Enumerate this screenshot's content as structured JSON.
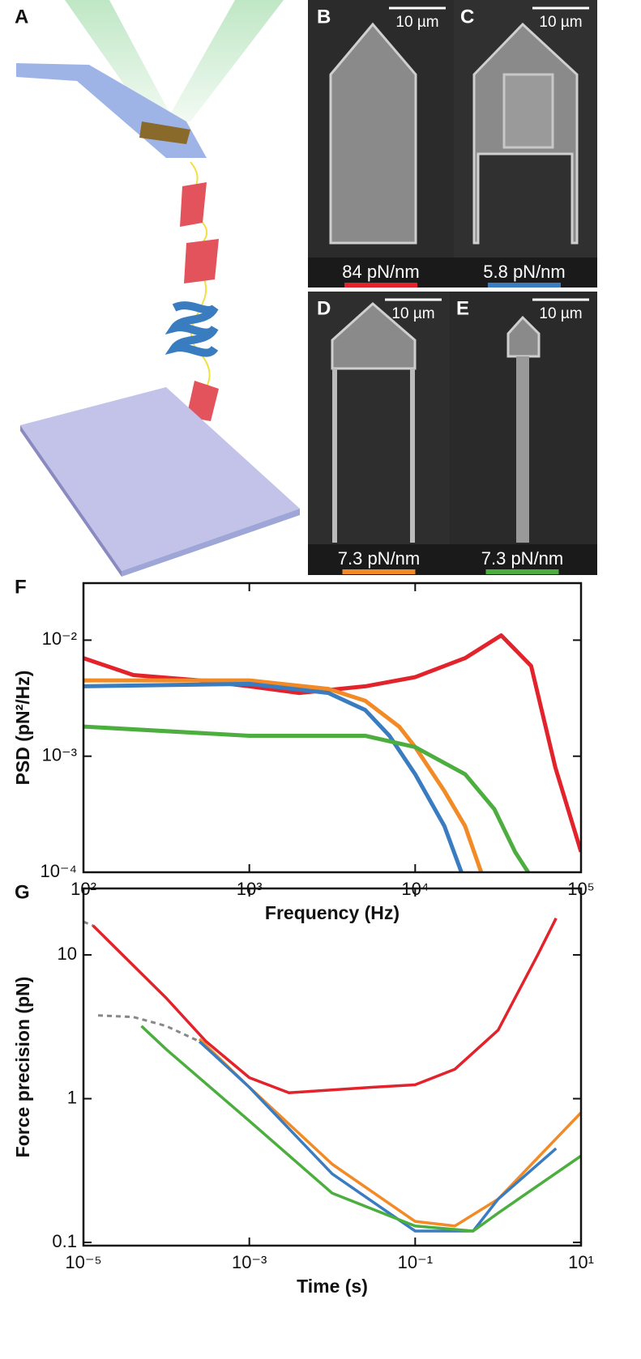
{
  "figure": {
    "panels": [
      {
        "label": "A"
      },
      {
        "label": "B",
        "scale_bar": "10 µm",
        "stiffness": "84 pN/nm",
        "color": "#e2232b"
      },
      {
        "label": "C",
        "scale_bar": "10 µm",
        "stiffness": "5.8 pN/nm",
        "color": "#3a7cc0"
      },
      {
        "label": "D",
        "scale_bar": "10 µm",
        "stiffness": "7.3 pN/nm",
        "color": "#f28a25"
      },
      {
        "label": "E",
        "scale_bar": "10 µm",
        "stiffness": "7.3 pN/nm",
        "color": "#4cae3f"
      }
    ]
  },
  "chart_data": [
    {
      "type": "line",
      "label": "F",
      "xlabel": "Frequency (Hz)",
      "ylabel": "PSD (pN²/Hz)",
      "xscale": "log",
      "yscale": "log",
      "xlim": [
        100,
        100000
      ],
      "ylim": [
        0.0001,
        0.031
      ],
      "xticks": [
        {
          "value": 100,
          "label": "10²"
        },
        {
          "value": 1000,
          "label": "10³"
        },
        {
          "value": 10000,
          "label": "10⁴"
        },
        {
          "value": 100000,
          "label": "10⁵"
        }
      ],
      "yticks": [
        {
          "value": 0.0001,
          "label": "10⁻⁴"
        },
        {
          "value": 0.001,
          "label": "10⁻³"
        },
        {
          "value": 0.01,
          "label": "10⁻²"
        }
      ],
      "series": [
        {
          "color": "#e2232b",
          "x": [
            100,
            200,
            500,
            1000,
            2000,
            5000,
            10000,
            20000,
            33000,
            50000,
            70000,
            100000
          ],
          "values": [
            0.007,
            0.005,
            0.0045,
            0.004,
            0.0035,
            0.004,
            0.0048,
            0.007,
            0.011,
            0.006,
            0.0008,
            0.00015
          ]
        },
        {
          "color": "#f28a25",
          "x": [
            100,
            1000,
            3000,
            5000,
            8000,
            10000,
            15000,
            20000,
            25000
          ],
          "values": [
            0.0045,
            0.0045,
            0.0038,
            0.003,
            0.0018,
            0.0012,
            0.0005,
            0.00025,
            0.0001
          ]
        },
        {
          "color": "#3a7cc0",
          "x": [
            100,
            1000,
            3000,
            5000,
            7000,
            10000,
            15000,
            19000
          ],
          "values": [
            0.004,
            0.0042,
            0.0035,
            0.0025,
            0.0015,
            0.0007,
            0.00025,
            0.0001
          ]
        },
        {
          "color": "#4cae3f",
          "x": [
            100,
            1000,
            5000,
            10000,
            20000,
            30000,
            40000,
            48000
          ],
          "values": [
            0.0018,
            0.0015,
            0.0015,
            0.0012,
            0.0007,
            0.00035,
            0.00015,
            0.0001
          ]
        }
      ]
    },
    {
      "type": "line",
      "label": "G",
      "xlabel": "Time (s)",
      "ylabel": "Force precision (pN)",
      "xscale": "log",
      "yscale": "log",
      "xlim": [
        1e-05,
        10
      ],
      "ylim": [
        0.095,
        29
      ],
      "xticks": [
        {
          "value": 1e-05,
          "label": "10⁻⁵"
        },
        {
          "value": 0.001,
          "label": "10⁻³"
        },
        {
          "value": 0.1,
          "label": "10⁻¹"
        },
        {
          "value": 10,
          "label": "10¹"
        }
      ],
      "yticks": [
        0.1,
        1,
        10
      ],
      "series": [
        {
          "color": "#888888",
          "dash": true,
          "x": [
            1e-05,
            1.3e-05
          ],
          "values": [
            17,
            16
          ]
        },
        {
          "color": "#888888",
          "dash": true,
          "x": [
            1.5e-05,
            4e-05,
            0.0001,
            0.00025
          ],
          "values": [
            3.8,
            3.7,
            3.2,
            2.5
          ]
        },
        {
          "color": "#e2232b",
          "x": [
            1.3e-05,
            0.0001,
            0.0003,
            0.001,
            0.003,
            0.01,
            0.03,
            0.1,
            0.3,
            1,
            3,
            5
          ],
          "values": [
            16,
            5,
            2.5,
            1.4,
            1.1,
            1.15,
            1.2,
            1.25,
            1.6,
            3,
            10,
            18
          ]
        },
        {
          "color": "#f28a25",
          "x": [
            0.00025,
            0.001,
            0.01,
            0.1,
            0.3,
            1,
            10
          ],
          "values": [
            2.6,
            1.2,
            0.35,
            0.14,
            0.13,
            0.2,
            0.8
          ]
        },
        {
          "color": "#3a7cc0",
          "x": [
            0.00025,
            0.001,
            0.01,
            0.1,
            0.5,
            1,
            5
          ],
          "values": [
            2.5,
            1.2,
            0.3,
            0.12,
            0.12,
            0.2,
            0.45
          ]
        },
        {
          "color": "#4cae3f",
          "x": [
            5e-05,
            0.0001,
            0.001,
            0.01,
            0.1,
            0.5,
            1,
            10
          ],
          "values": [
            3.2,
            2.2,
            0.7,
            0.22,
            0.13,
            0.12,
            0.16,
            0.4
          ]
        }
      ]
    }
  ]
}
